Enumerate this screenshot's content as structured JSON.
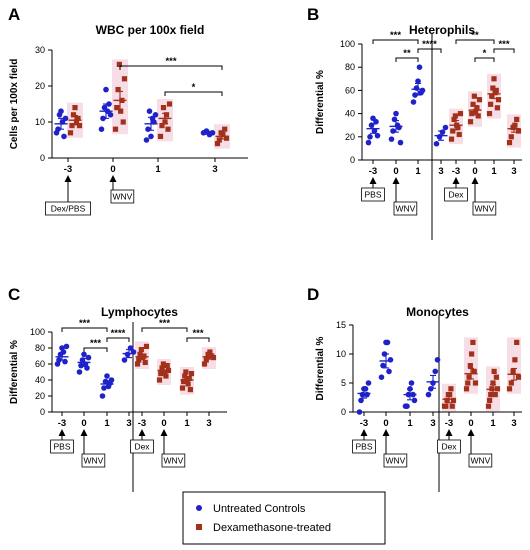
{
  "colors": {
    "untreated": "#1f22c8",
    "dexamethasone": "#a2311c",
    "highlight": "#f7dde5"
  },
  "legend": {
    "untreated": "Untreated Controls",
    "dexamethasone": "Dexamethasone-treated"
  },
  "chart_data": [
    {
      "type": "scatter",
      "letter": "A",
      "title": "WBC per 100x field",
      "ylabel": "Cells per 100x field",
      "ylim": [
        0,
        30
      ],
      "yticks": [
        "0",
        "10",
        "20",
        "30"
      ],
      "x_labels": [
        "-3",
        "0",
        "1",
        "3"
      ],
      "annotations": [
        {
          "text": "Dex/PBS",
          "x_index": 0,
          "arrow": "up"
        },
        {
          "text": "WNV",
          "x_index": 1,
          "arrow": "up"
        }
      ],
      "significance": [
        {
          "from": 1,
          "to": 3,
          "label": "***"
        },
        {
          "from": 2,
          "to": 3,
          "label": "*"
        }
      ],
      "series": [
        {
          "name": "Untreated Controls",
          "mean": [
            9.5,
            13.0,
            9.5,
            7.0
          ],
          "sem": [
            1.5,
            2.0,
            1.8,
            0.4
          ],
          "points": [
            [
              7,
              8,
              12,
              13,
              10,
              6,
              11
            ],
            [
              8,
              11,
              14,
              19,
              13,
              15,
              12
            ],
            [
              5,
              8,
              13,
              6,
              11,
              10,
              12
            ],
            [
              7,
              7.5,
              6.5,
              7
            ]
          ]
        },
        {
          "name": "Dexamethasone-treated",
          "mean": [
            10.5,
            16.0,
            11.0,
            6.0
          ],
          "sem": [
            1.3,
            2.5,
            1.4,
            0.7
          ],
          "points": [
            [
              7,
              9,
              12,
              14,
              10,
              11,
              9
            ],
            [
              8,
              14,
              19,
              26,
              13,
              16,
              10,
              22
            ],
            [
              6,
              9,
              14,
              10,
              12,
              8,
              15
            ],
            [
              4,
              5,
              7,
              6.5,
              8,
              5.5
            ]
          ]
        }
      ]
    },
    {
      "type": "scatter",
      "letter": "B",
      "title": "Heterophils",
      "ylabel": "Differential %",
      "ylim": [
        0,
        100
      ],
      "yticks": [
        "0",
        "20",
        "40",
        "60",
        "80",
        "100"
      ],
      "x_labels": [
        "-3",
        "0",
        "1",
        "3",
        "-3",
        "0",
        "1",
        "3"
      ],
      "annotations": [
        {
          "text": "PBS",
          "x_index": 0,
          "arrow": "up"
        },
        {
          "text": "WNV",
          "x_index": 1,
          "arrow": "up"
        },
        {
          "text": "Dex",
          "x_index": 4,
          "arrow": "up"
        },
        {
          "text": "WNV",
          "x_index": 5,
          "arrow": "up"
        }
      ],
      "significance": [
        {
          "from": 0,
          "to": 2,
          "label": "***"
        },
        {
          "from": 2,
          "to": 3,
          "label": "****"
        },
        {
          "from": 1,
          "to": 2,
          "label": "**"
        },
        {
          "from": 4,
          "to": 6,
          "label": "**"
        },
        {
          "from": 6,
          "to": 7,
          "label": "***"
        },
        {
          "from": 5,
          "to": 6,
          "label": "*"
        }
      ],
      "series": [
        {
          "name": "Untreated Controls",
          "mean": [
            27,
            29,
            61,
            21
          ],
          "sem": [
            4,
            5,
            5,
            4
          ],
          "points": [
            [
              15,
              20,
              30,
              36,
              25,
              33,
              21
            ],
            [
              18,
              25,
              35,
              40,
              30,
              28,
              15
            ],
            [
              50,
              56,
              62,
              68,
              80,
              58,
              60
            ],
            [
              14,
              20,
              24,
              28
            ]
          ]
        },
        {
          "name": "Dexamethasone-treated",
          "mean": [
            30,
            43,
            57,
            27
          ],
          "sem": [
            4,
            4,
            4,
            3
          ],
          "points": [
            [
              18,
              25,
              35,
              38,
              30,
              28,
              22,
              40
            ],
            [
              33,
              40,
              48,
              55,
              42,
              45,
              38,
              52
            ],
            [
              40,
              48,
              55,
              62,
              70,
              58,
              60,
              45,
              52
            ],
            [
              15,
              20,
              28,
              30,
              35,
              25
            ]
          ]
        }
      ]
    },
    {
      "type": "scatter",
      "letter": "C",
      "title": "Lymphocytes",
      "ylabel": "Differential %",
      "ylim": [
        0,
        100
      ],
      "yticks": [
        "0",
        "20",
        "40",
        "60",
        "80",
        "100"
      ],
      "x_labels": [
        "-3",
        "0",
        "1",
        "3",
        "-3",
        "0",
        "1",
        "3"
      ],
      "annotations": [
        {
          "text": "PBS",
          "x_index": 0,
          "arrow": "up"
        },
        {
          "text": "WNV",
          "x_index": 1,
          "arrow": "up"
        },
        {
          "text": "Dex",
          "x_index": 4,
          "arrow": "up"
        },
        {
          "text": "WNV",
          "x_index": 5,
          "arrow": "up"
        }
      ],
      "significance": [
        {
          "from": 0,
          "to": 2,
          "label": "***"
        },
        {
          "from": 2,
          "to": 3,
          "label": "****"
        },
        {
          "from": 1,
          "to": 2,
          "label": "***"
        },
        {
          "from": 4,
          "to": 6,
          "label": "***"
        },
        {
          "from": 6,
          "to": 7,
          "label": "***"
        }
      ],
      "series": [
        {
          "name": "Untreated Controls",
          "mean": [
            69,
            62,
            35,
            73
          ],
          "sem": [
            4,
            5,
            4,
            5
          ],
          "points": [
            [
              60,
              65,
              72,
              80,
              75,
              63,
              82
            ],
            [
              50,
              58,
              65,
              72,
              60,
              55,
              68
            ],
            [
              20,
              30,
              38,
              45,
              32,
              36,
              40
            ],
            [
              65,
              72,
              80,
              75
            ]
          ]
        },
        {
          "name": "Dexamethasone-treated",
          "mean": [
            69,
            52,
            40,
            69
          ],
          "sem": [
            3,
            4,
            4,
            3
          ],
          "points": [
            [
              60,
              65,
              72,
              78,
              68,
              70,
              62,
              82
            ],
            [
              40,
              48,
              55,
              60,
              50,
              45,
              58,
              52
            ],
            [
              30,
              38,
              45,
              50,
              40,
              35,
              42,
              28,
              48
            ],
            [
              60,
              65,
              72,
              75,
              70,
              68
            ]
          ]
        }
      ]
    },
    {
      "type": "scatter",
      "letter": "D",
      "title": "Monocytes",
      "ylabel": "Differential %",
      "ylim": [
        0,
        15
      ],
      "yticks": [
        "0",
        "5",
        "10",
        "15"
      ],
      "x_labels": [
        "-3",
        "0",
        "1",
        "3",
        "-3",
        "0",
        "1",
        "3"
      ],
      "annotations": [
        {
          "text": "PBS",
          "x_index": 0,
          "arrow": "up"
        },
        {
          "text": "WNV",
          "x_index": 1,
          "arrow": "up"
        },
        {
          "text": "Dex",
          "x_index": 4,
          "arrow": "up"
        },
        {
          "text": "WNV",
          "x_index": 5,
          "arrow": "up"
        }
      ],
      "significance": [],
      "series": [
        {
          "name": "Untreated Controls",
          "mean": [
            3.2,
            8.8,
            3.0,
            5.2
          ],
          "sem": [
            0.8,
            1.2,
            0.9,
            1.1
          ],
          "points": [
            [
              0,
              2,
              3,
              4,
              4,
              3,
              5
            ],
            [
              6,
              8,
              10,
              12,
              12,
              7,
              9
            ],
            [
              1,
              1,
              3,
              4,
              5,
              3,
              2
            ],
            [
              3,
              4,
              5,
              7,
              9
            ]
          ]
        },
        {
          "name": "Dexamethasone-treated",
          "mean": [
            2.2,
            6.6,
            3.9,
            6.5
          ],
          "sem": [
            0.6,
            0.9,
            0.8,
            1.0
          ],
          "points": [
            [
              1,
              1,
              2,
              3,
              3,
              4,
              1,
              2
            ],
            [
              4,
              5,
              6,
              8,
              10,
              12,
              7,
              5
            ],
            [
              1,
              2,
              3,
              4,
              5,
              7,
              3,
              6,
              4
            ],
            [
              4,
              5,
              7,
              9,
              12,
              6
            ]
          ]
        }
      ]
    }
  ]
}
